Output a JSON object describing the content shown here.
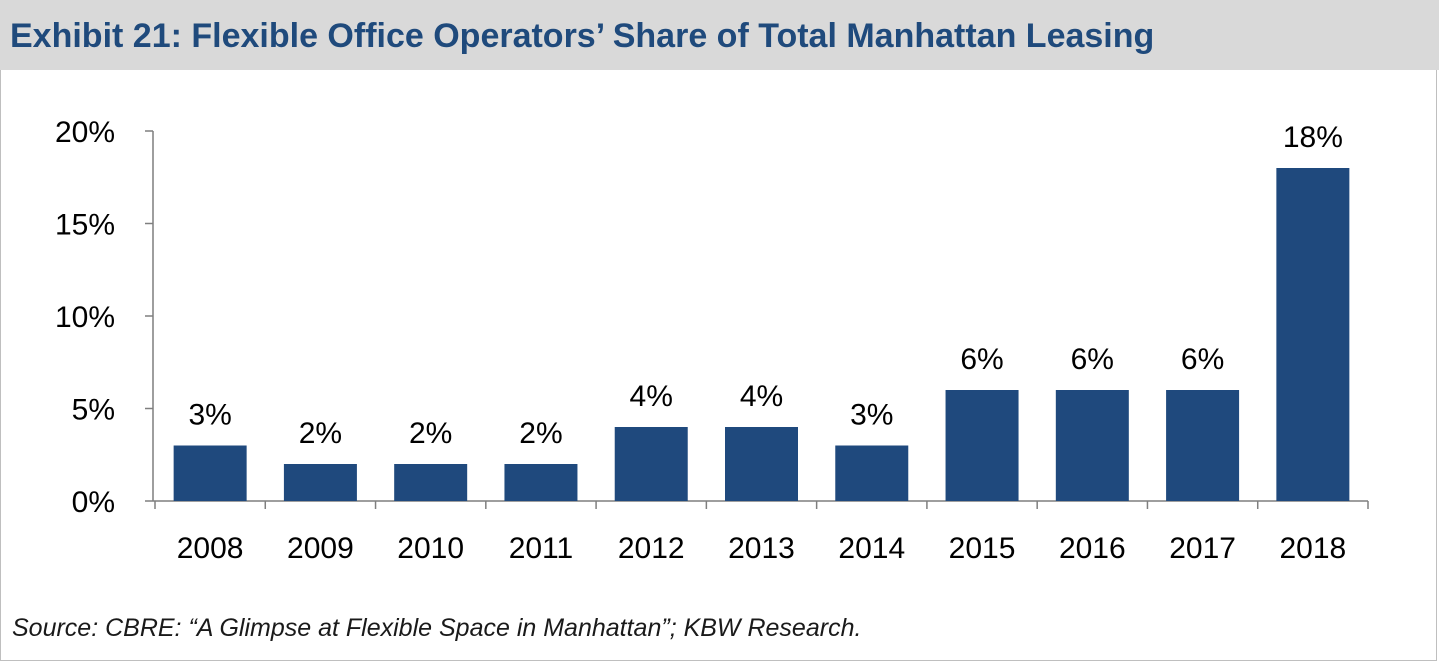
{
  "header": {
    "title": "Exhibit 21: Flexible Office Operators’ Share of Total Manhattan Leasing"
  },
  "footer": {
    "source": "Source: CBRE: “A Glimpse at Flexible Space in Manhattan”; KBW Research."
  },
  "colors": {
    "bar": "#1f497d",
    "title": "#1f4a7c",
    "header_bg": "#d9d9d9"
  },
  "chart_data": {
    "type": "bar",
    "categories": [
      "2008",
      "2009",
      "2010",
      "2011",
      "2012",
      "2013",
      "2014",
      "2015",
      "2016",
      "2017",
      "2018"
    ],
    "values": [
      3,
      2,
      2,
      2,
      4,
      4,
      3,
      6,
      6,
      6,
      18
    ],
    "data_labels": [
      "3%",
      "2%",
      "2%",
      "2%",
      "4%",
      "4%",
      "3%",
      "6%",
      "6%",
      "6%",
      "18%"
    ],
    "yticks": [
      "0%",
      "5%",
      "10%",
      "15%",
      "20%"
    ],
    "ytick_values": [
      0,
      5,
      10,
      15,
      20
    ],
    "ylim": [
      0,
      20
    ],
    "grid": false,
    "legend": "none"
  }
}
